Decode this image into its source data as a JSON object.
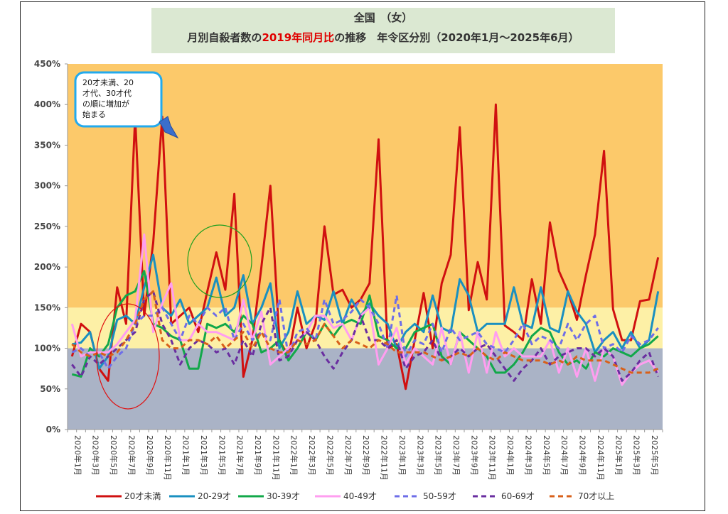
{
  "title": {
    "line1": "全国　（女）",
    "line2_pre": "月別自殺者数の",
    "line2_red": "2019年同月比",
    "line2_post": "の推移　年令区分別（2020年1月～2025年6月）"
  },
  "annotation": {
    "lines": [
      "20才未満、20",
      "才代、30才代",
      "の順に増加が",
      "始まる"
    ]
  },
  "colors": {
    "band_high": "#fcc96a",
    "band_mid": "#fdf0a6",
    "band_low": "#aab3c6",
    "s_u20": "#d01010",
    "s_20s": "#1a90c0",
    "s_30s": "#12a84a",
    "s_40s": "#ff9ef0",
    "s_50s": "#6e6ee8",
    "s_60s": "#6a2ea0",
    "s_70s": "#d8601a",
    "callout_border": "#22aaee",
    "arrow": "#3a6ecc"
  },
  "chart_data": {
    "type": "line",
    "title": "全国　（女）　月別自殺者数の2019年同月比の推移　年令区分別（2020年1月～2025年6月）",
    "y_unit": "%",
    "ylim": [
      0,
      450
    ],
    "yticks": [
      0,
      50,
      100,
      150,
      200,
      250,
      300,
      350,
      400,
      450
    ],
    "ytick_labels": [
      "0%",
      "50%",
      "100%",
      "150%",
      "200%",
      "250%",
      "300%",
      "350%",
      "400%",
      "450%"
    ],
    "bands": [
      {
        "from": 0,
        "to": 100,
        "color": "band_low"
      },
      {
        "from": 100,
        "to": 150,
        "color": "band_mid"
      },
      {
        "from": 150,
        "to": 450,
        "color": "band_high"
      }
    ],
    "x": [
      "2020-01",
      "2020-02",
      "2020-03",
      "2020-04",
      "2020-05",
      "2020-06",
      "2020-07",
      "2020-08",
      "2020-09",
      "2020-10",
      "2020-11",
      "2020-12",
      "2021-01",
      "2021-02",
      "2021-03",
      "2021-04",
      "2021-05",
      "2021-06",
      "2021-07",
      "2021-08",
      "2021-09",
      "2021-10",
      "2021-11",
      "2021-12",
      "2022-01",
      "2022-02",
      "2022-03",
      "2022-04",
      "2022-05",
      "2022-06",
      "2022-07",
      "2022-08",
      "2022-09",
      "2022-10",
      "2022-11",
      "2022-12",
      "2023-01",
      "2023-02",
      "2023-03",
      "2023-04",
      "2023-05",
      "2023-06",
      "2023-07",
      "2023-08",
      "2023-09",
      "2023-10",
      "2023-11",
      "2023-12",
      "2024-01",
      "2024-02",
      "2024-03",
      "2024-04",
      "2024-05",
      "2024-06",
      "2024-07",
      "2024-08",
      "2024-09",
      "2024-10",
      "2024-11",
      "2024-12",
      "2025-01",
      "2025-02",
      "2025-03",
      "2025-04",
      "2025-05",
      "2025-06"
    ],
    "x_tick_labels": [
      "2020年1月",
      "2020年3月",
      "2020年5月",
      "2020年7月",
      "2020年9月",
      "2020年11月",
      "2021年1月",
      "2021年3月",
      "2021年5月",
      "2021年7月",
      "2021年9月",
      "2021年11月",
      "2022年1月",
      "2022年3月",
      "2022年5月",
      "2022年7月",
      "2022年9月",
      "2022年11月",
      "2023年1月",
      "2023年3月",
      "2023年5月",
      "2023年7月",
      "2023年9月",
      "2023年11月",
      "2024年1月",
      "2024年3月",
      "2024年5月",
      "2024年7月",
      "2024年9月",
      "2024年11月",
      "2025年1月",
      "2025年3月",
      "2025年5月"
    ],
    "legend_position": "bottom",
    "series": [
      {
        "name": "20才未満",
        "color": "s_u20",
        "dash": "solid",
        "values": [
          90,
          130,
          120,
          75,
          60,
          175,
          130,
          385,
          140,
          230,
          385,
          130,
          140,
          150,
          120,
          170,
          218,
          172,
          290,
          65,
          110,
          200,
          300,
          110,
          90,
          150,
          100,
          130,
          250,
          166,
          172,
          150,
          160,
          180,
          357,
          100,
          105,
          50,
          110,
          168,
          100,
          180,
          215,
          372,
          147,
          206,
          160,
          400,
          128,
          120,
          110,
          185,
          130,
          255,
          195,
          170,
          135,
          190,
          240,
          343,
          148,
          110,
          110,
          158,
          160,
          212
        ]
      },
      {
        "name": "20-29才",
        "color": "s_20s",
        "dash": "solid",
        "values": [
          105,
          107,
          120,
          75,
          90,
          135,
          140,
          130,
          175,
          215,
          150,
          140,
          160,
          130,
          140,
          150,
          187,
          140,
          150,
          190,
          130,
          150,
          180,
          100,
          120,
          170,
          130,
          140,
          135,
          170,
          130,
          160,
          140,
          155,
          140,
          130,
          100,
          120,
          130,
          120,
          165,
          125,
          120,
          185,
          165,
          120,
          130,
          130,
          130,
          175,
          130,
          125,
          175,
          125,
          120,
          170,
          145,
          130,
          95,
          110,
          120,
          100,
          120,
          100,
          110,
          170
        ]
      },
      {
        "name": "30-39才",
        "color": "s_30s",
        "dash": "solid",
        "values": [
          68,
          65,
          100,
          90,
          105,
          150,
          165,
          170,
          195,
          130,
          125,
          115,
          110,
          75,
          75,
          130,
          125,
          130,
          120,
          140,
          130,
          95,
          100,
          110,
          85,
          100,
          120,
          110,
          130,
          115,
          130,
          135,
          130,
          165,
          115,
          110,
          100,
          100,
          120,
          125,
          130,
          90,
          80,
          120,
          110,
          100,
          90,
          70,
          70,
          80,
          95,
          115,
          125,
          120,
          95,
          80,
          85,
          75,
          95,
          90,
          100,
          95,
          90,
          100,
          105,
          115
        ]
      },
      {
        "name": "40-49才",
        "color": "s_40s",
        "dash": "solid",
        "values": [
          130,
          90,
          95,
          95,
          95,
          105,
          120,
          135,
          240,
          120,
          155,
          180,
          110,
          110,
          130,
          120,
          120,
          115,
          110,
          160,
          110,
          145,
          80,
          90,
          100,
          110,
          120,
          140,
          140,
          125,
          130,
          110,
          140,
          150,
          80,
          100,
          125,
          80,
          100,
          90,
          80,
          125,
          80,
          120,
          70,
          120,
          70,
          120,
          90,
          100,
          90,
          90,
          90,
          110,
          70,
          100,
          65,
          100,
          60,
          100,
          90,
          55,
          70,
          80,
          85,
          70
        ]
      },
      {
        "name": "50-59才",
        "color": "s_50s",
        "dash": "dashed",
        "values": [
          95,
          100,
          90,
          95,
          75,
          90,
          100,
          130,
          140,
          140,
          150,
          130,
          110,
          140,
          130,
          150,
          140,
          150,
          110,
          130,
          110,
          120,
          110,
          160,
          90,
          120,
          125,
          110,
          160,
          130,
          135,
          145,
          160,
          150,
          130,
          100,
          165,
          90,
          110,
          105,
          130,
          95,
          125,
          110,
          115,
          120,
          105,
          100,
          95,
          110,
          130,
          105,
          115,
          110,
          100,
          130,
          110,
          130,
          140,
          100,
          105,
          95,
          115,
          105,
          110,
          125
        ]
      },
      {
        "name": "60-69才",
        "color": "s_60s",
        "dash": "dashed",
        "values": [
          80,
          65,
          90,
          80,
          90,
          100,
          110,
          120,
          160,
          170,
          130,
          110,
          80,
          100,
          110,
          105,
          95,
          100,
          80,
          110,
          90,
          130,
          150,
          85,
          90,
          110,
          120,
          110,
          90,
          75,
          95,
          110,
          140,
          110,
          110,
          100,
          110,
          75,
          90,
          95,
          110,
          85,
          90,
          100,
          90,
          100,
          105,
          90,
          75,
          60,
          75,
          85,
          100,
          80,
          90,
          95,
          100,
          100,
          90,
          100,
          90,
          60,
          70,
          85,
          95,
          65
        ]
      },
      {
        "name": "70才以上",
        "color": "s_70s",
        "dash": "dashed",
        "values": [
          105,
          95,
          90,
          95,
          90,
          95,
          110,
          130,
          160,
          170,
          110,
          100,
          100,
          110,
          110,
          105,
          115,
          100,
          110,
          120,
          100,
          120,
          100,
          95,
          95,
          110,
          105,
          110,
          130,
          115,
          100,
          110,
          105,
          100,
          110,
          105,
          95,
          95,
          95,
          95,
          90,
          85,
          90,
          95,
          90,
          100,
          90,
          85,
          95,
          90,
          85,
          85,
          85,
          80,
          85,
          80,
          90,
          85,
          85,
          85,
          80,
          75,
          70,
          70,
          70,
          75
        ]
      }
    ]
  }
}
